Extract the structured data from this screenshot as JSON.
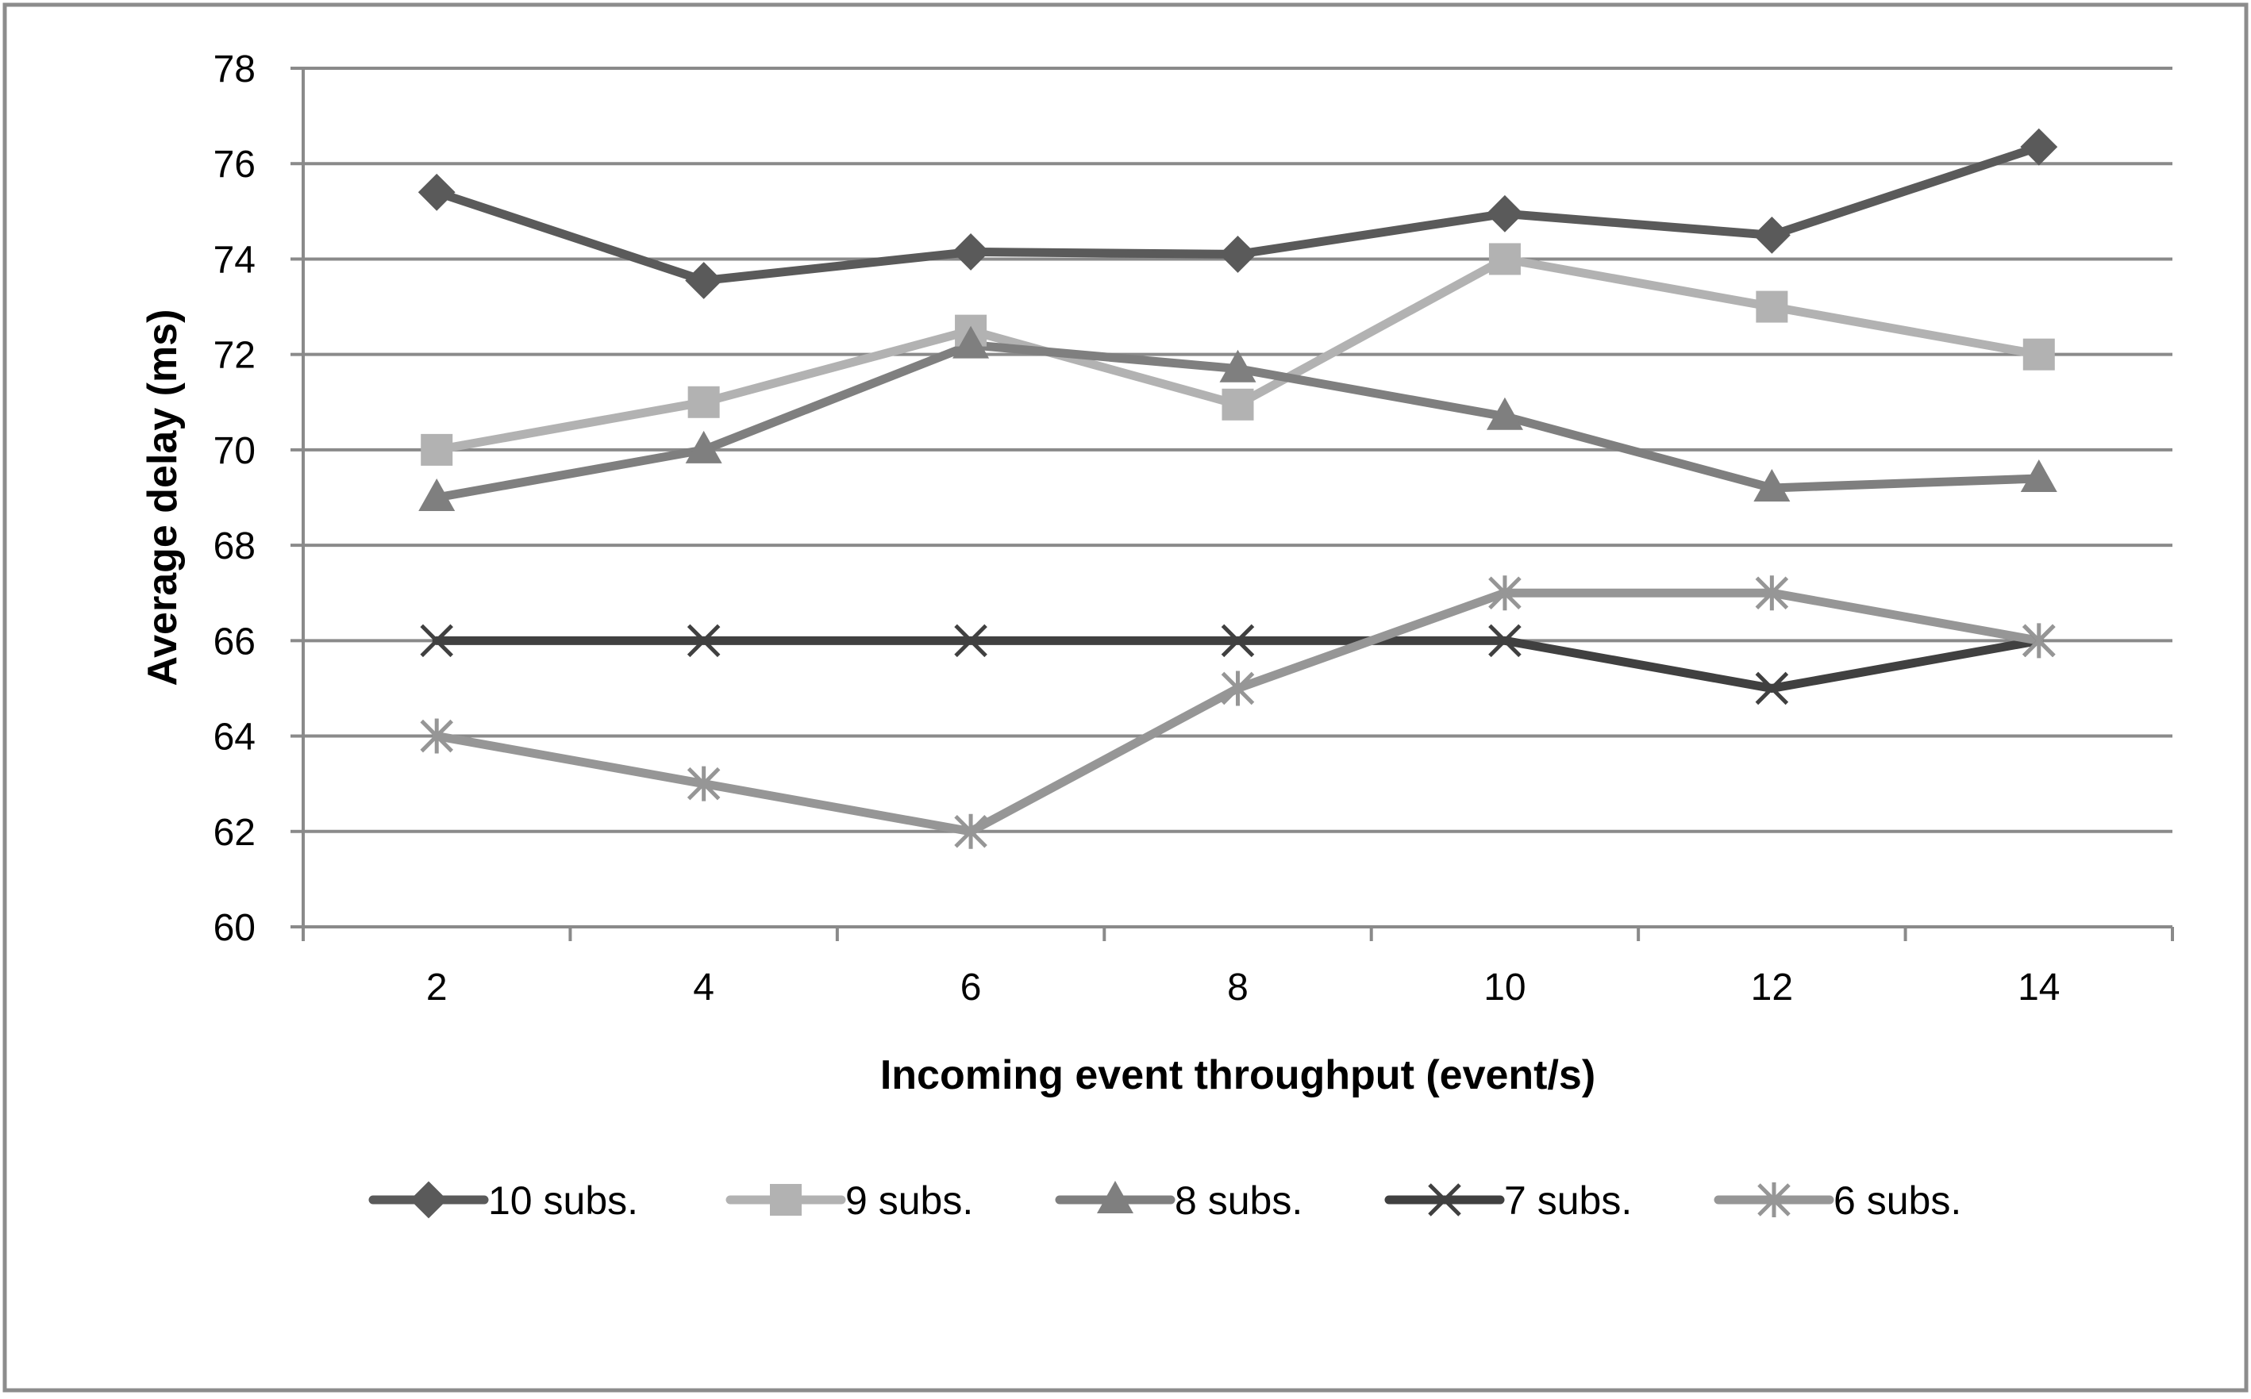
{
  "chart_data": {
    "type": "line",
    "title": "",
    "xlabel": "Incoming event throughput (event/s)",
    "ylabel": "Average delay (ms)",
    "x": [
      2,
      4,
      6,
      8,
      10,
      12,
      14
    ],
    "categories": [
      "2",
      "4",
      "6",
      "8",
      "10",
      "12",
      "14"
    ],
    "ylim": [
      60,
      78
    ],
    "yticks": [
      60,
      62,
      64,
      66,
      68,
      70,
      72,
      74,
      76,
      78
    ],
    "grid": true,
    "legend_position": "bottom",
    "series": [
      {
        "name": "10 subs.",
        "marker": "diamond",
        "color": "#5a5a5a",
        "values": [
          75.4,
          73.55,
          74.15,
          74.1,
          74.95,
          74.5,
          76.35
        ]
      },
      {
        "name": "9 subs.",
        "marker": "square",
        "color": "#b2b2b2",
        "values": [
          70,
          71,
          72.5,
          70.95,
          74,
          73,
          72
        ]
      },
      {
        "name": "8 subs.",
        "marker": "triangle",
        "color": "#7f7f7f",
        "values": [
          69,
          70,
          72.2,
          71.7,
          70.7,
          69.2,
          69.4
        ]
      },
      {
        "name": "7 subs.",
        "marker": "x",
        "color": "#404040",
        "values": [
          66,
          66,
          66,
          66,
          66,
          65,
          66
        ]
      },
      {
        "name": "6 subs.",
        "marker": "star",
        "color": "#969696",
        "values": [
          64,
          63,
          62,
          65,
          67,
          67,
          66
        ]
      }
    ]
  }
}
